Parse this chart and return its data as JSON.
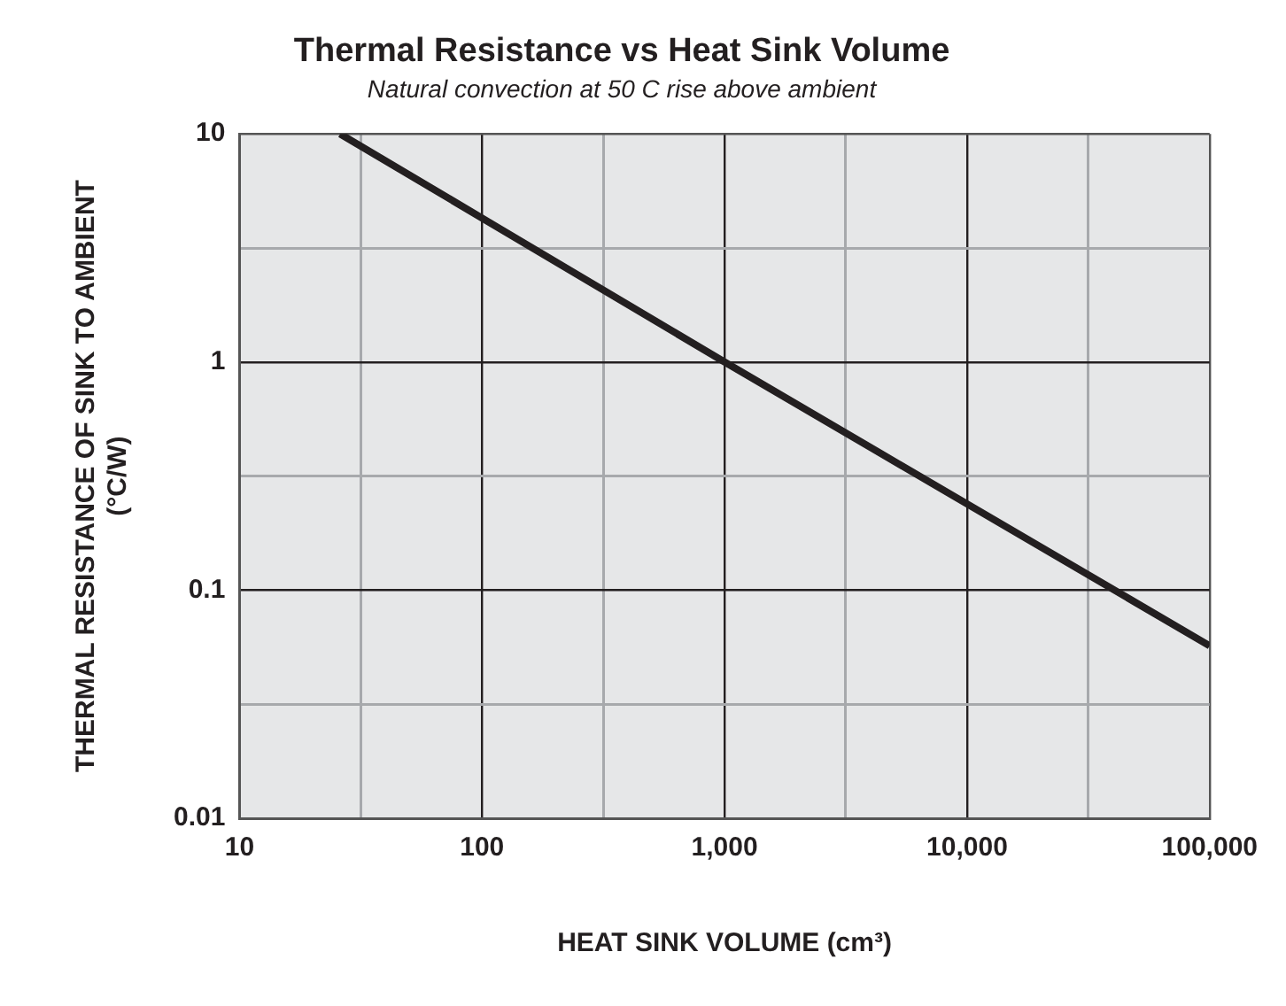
{
  "chart_data": {
    "type": "line",
    "title": "Thermal Resistance vs Heat Sink Volume",
    "subtitle": "Natural convection at 50 C rise above ambient",
    "xlabel": "HEAT SINK VOLUME (cm³)",
    "ylabel": "THERMAL RESISTANCE OF SINK TO AMBIENT\n(°C/W)",
    "log": "xy",
    "x": [
      26,
      1000,
      100000
    ],
    "series": [
      {
        "color": "#231f20",
        "values": [
          10,
          1,
          0.057
        ]
      }
    ],
    "xlim": [
      10,
      100000
    ],
    "ylim": [
      0.01,
      10
    ],
    "xticks": [
      10,
      {
        "value": 31.6,
        "label": null
      },
      {
        "value": 100,
        "label": "100"
      },
      {
        "value": 316,
        "label": null
      },
      {
        "value": 1000,
        "label": "1,000"
      },
      {
        "value": 3160,
        "label": null
      },
      {
        "value": 10000,
        "label": "10,000"
      },
      {
        "value": 31600,
        "label": null
      },
      {
        "value": 100000,
        "label": "100,000"
      }
    ],
    "yticks": [
      0.01,
      {
        "value": 0.0316,
        "label": null
      },
      0.1,
      {
        "value": 0.316,
        "label": null
      },
      1,
      {
        "value": 3.16,
        "label": null
      },
      10
    ],
    "grid": true,
    "legend": false,
    "marker": "none",
    "line_style": "solid"
  }
}
